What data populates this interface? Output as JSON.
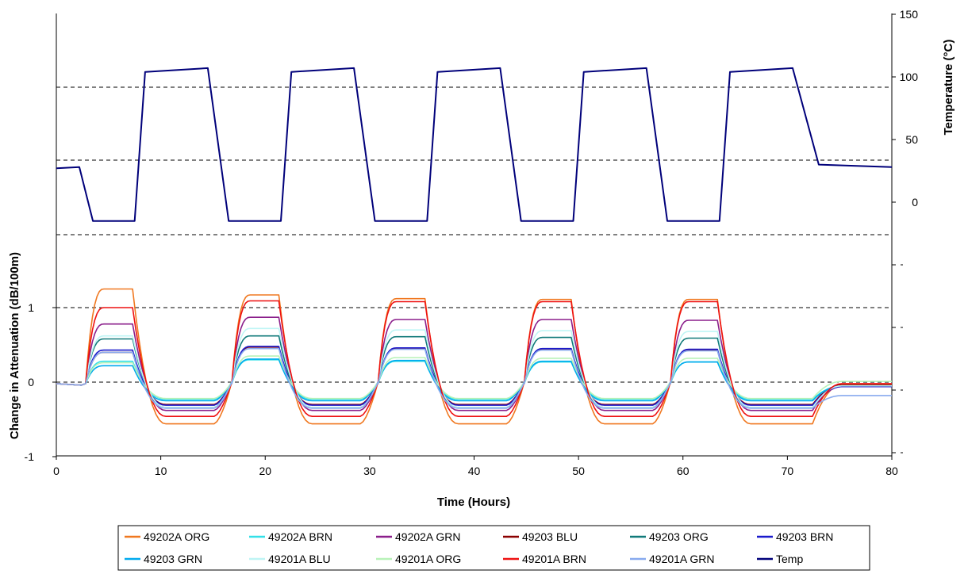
{
  "chart_data": {
    "type": "line",
    "xlabel": "Time (Hours)",
    "ylabel_left": "Change in Attenuation (dB/100m)",
    "ylabel_right": "Temperature (°C)",
    "xlim": [
      0,
      80
    ],
    "x_ticks": [
      "0",
      "10",
      "20",
      "30",
      "40",
      "50",
      "60",
      "70",
      "80"
    ],
    "ylim_left": [
      -1,
      1
    ],
    "y_ticks_left": [
      "-1",
      "0",
      "1"
    ],
    "ylim_right": [
      0,
      150
    ],
    "y_ticks_right": [
      "0",
      "50",
      "100",
      "150"
    ],
    "grid": "dashed horizontal",
    "legend_position": "bottom",
    "cycles": [
      {
        "low_start": 2.5,
        "high_start": 8.5,
        "high_end": 14.5,
        "low_end": 16.5
      },
      {
        "low_start": 16.5,
        "high_start": 22.5,
        "high_end": 28.5,
        "low_end": 30.5
      },
      {
        "low_start": 30.5,
        "high_start": 36.5,
        "high_end": 42.5,
        "low_end": 44.5
      },
      {
        "low_start": 44.5,
        "high_start": 50.5,
        "high_end": 56.5,
        "low_end": 58.5
      },
      {
        "low_start": 58.5,
        "high_start": 64.5,
        "high_end": 70.5,
        "low_end": 73.0
      }
    ],
    "series": [
      {
        "name": "49202A ORG",
        "color": "#F07820",
        "high": [
          1.25,
          1.17,
          1.12,
          1.11,
          1.11
        ],
        "low": -0.56,
        "end": -0.03
      },
      {
        "name": "49202A BRN",
        "color": "#33E0E8",
        "high": [
          0.28,
          0.3,
          0.28,
          0.27,
          0.27
        ],
        "low": -0.23,
        "end": -0.05
      },
      {
        "name": "49202A GRN",
        "color": "#8B1F8B",
        "high": [
          0.78,
          0.87,
          0.84,
          0.84,
          0.83
        ],
        "low": -0.38,
        "end": -0.06
      },
      {
        "name": "49203 BLU",
        "color": "#8B0000",
        "high": [
          0.4,
          0.47,
          0.45,
          0.44,
          0.43
        ],
        "low": -0.3,
        "end": -0.04
      },
      {
        "name": "49203 ORG",
        "color": "#117A7A",
        "high": [
          0.58,
          0.62,
          0.61,
          0.6,
          0.59
        ],
        "low": -0.34,
        "end": -0.05
      },
      {
        "name": "49203 BRN",
        "color": "#1A1ACC",
        "high": [
          0.43,
          0.48,
          0.46,
          0.45,
          0.44
        ],
        "low": -0.31,
        "end": -0.06
      },
      {
        "name": "49203 GRN",
        "color": "#00AAEE",
        "high": [
          0.22,
          0.31,
          0.29,
          0.28,
          0.27
        ],
        "low": -0.25,
        "end": -0.05
      },
      {
        "name": "49201A BLU",
        "color": "#BFF5F5",
        "high": [
          0.62,
          0.72,
          0.7,
          0.69,
          0.68
        ],
        "low": -0.34,
        "end": -0.05
      },
      {
        "name": "49201A ORG",
        "color": "#B8F2B8",
        "high": [
          0.26,
          0.35,
          0.33,
          0.32,
          0.32
        ],
        "low": -0.22,
        "end": 0.01
      },
      {
        "name": "49201A BRN",
        "color": "#EE1111",
        "high": [
          1.0,
          1.09,
          1.08,
          1.08,
          1.08
        ],
        "low": -0.46,
        "end": -0.02
      },
      {
        "name": "49201A GRN",
        "color": "#88AAEE",
        "high": [
          0.4,
          0.45,
          0.44,
          0.43,
          0.42
        ],
        "low": -0.35,
        "end": -0.18
      },
      {
        "name": "Temp",
        "color": "#00007A",
        "axis": "right",
        "points": [
          [
            0,
            27
          ],
          [
            2.2,
            28
          ],
          [
            3.5,
            -15
          ],
          [
            7.5,
            -15
          ],
          [
            8.5,
            104
          ],
          [
            14.5,
            107
          ],
          [
            16.5,
            -15
          ],
          [
            21.5,
            -15
          ],
          [
            22.5,
            104
          ],
          [
            28.5,
            107
          ],
          [
            30.5,
            -15
          ],
          [
            35.5,
            -15
          ],
          [
            36.5,
            104
          ],
          [
            42.5,
            107
          ],
          [
            44.5,
            -15
          ],
          [
            49.5,
            -15
          ],
          [
            50.5,
            104
          ],
          [
            56.5,
            107
          ],
          [
            58.5,
            -15
          ],
          [
            63.5,
            -15
          ],
          [
            64.5,
            104
          ],
          [
            70.5,
            107
          ],
          [
            73.0,
            30
          ],
          [
            80,
            28
          ]
        ]
      }
    ]
  }
}
